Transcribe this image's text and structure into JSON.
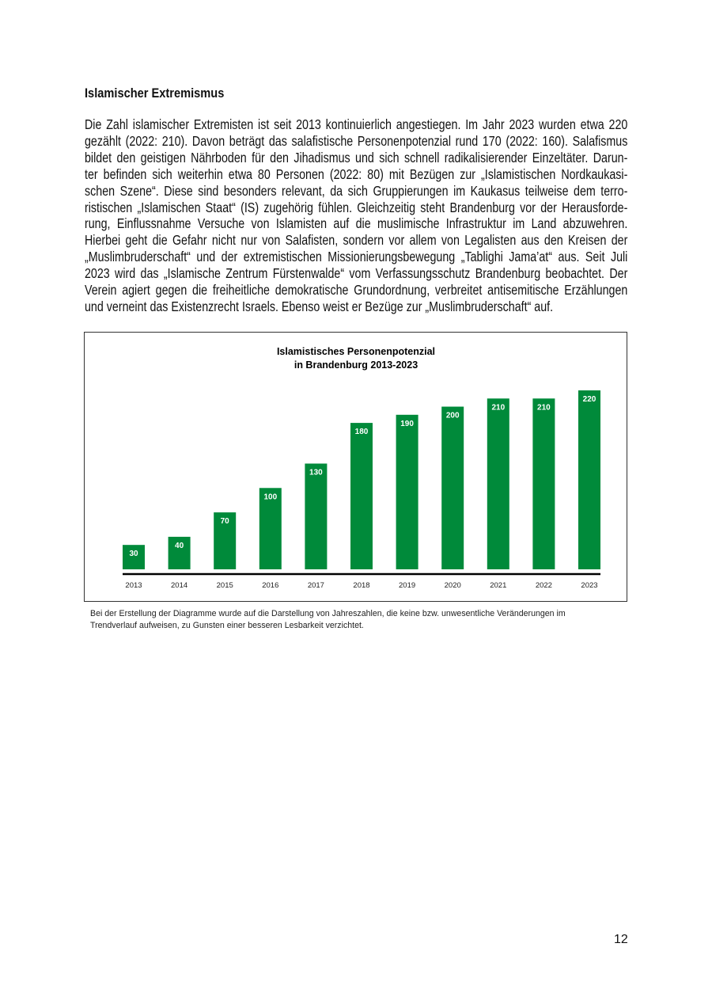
{
  "heading": "Islamischer Extremismus",
  "paragraph_lines": [
    "Die Zahl islamischer Extremisten ist seit 2013 kontinuierlich angestiegen. Im Jahr 2023 wurden etwa 220",
    "gezählt (2022: 210). Davon beträgt das salafistische Personenpotenzial rund 170 (2022: 160). Salafismus",
    "bildet den geistigen Nährboden für den Jihadismus und sich schnell radikalisierender Einzeltäter. Darun-",
    "ter befinden sich weiterhin etwa 80 Personen (2022: 80) mit Bezügen zur „Islamistischen Nordkaukasi-",
    "schen Szene“. Diese sind besonders relevant, da sich Gruppierungen im Kaukasus teilweise dem terro-",
    "ristischen „Islamischen Staat“ (IS) zugehörig fühlen. Gleichzeitig steht Brandenburg vor der Herausforde-",
    "rung, Einflussnahme Versuche von Islamisten auf die muslimische Infrastruktur im Land abzuwehren.",
    "Hierbei geht die Gefahr nicht nur von Salafisten, sondern vor allem von Legalisten aus den Kreisen der",
    "„Muslimbruderschaft“ und der extremistischen Missionierungsbewegung „Tablighi Jama’at“ aus. Seit Juli",
    "2023 wird das „Islamische Zentrum Fürstenwalde“ vom Verfassungsschutz Brandenburg beobachtet. Der",
    "Verein agiert gegen die freiheitliche demokratische Grundordnung, verbreitet antisemitische Erzählungen",
    "und verneint das Existenzrecht Israels. Ebenso weist er Bezüge zur „Muslimbruderschaft“ auf."
  ],
  "chart_data": {
    "type": "bar",
    "title": [
      "Islamistisches Personenpotenzial",
      "in Brandenburg 2013-2023"
    ],
    "categories": [
      "2013",
      "2014",
      "2015",
      "2016",
      "2017",
      "2018",
      "2019",
      "2020",
      "2021",
      "2022",
      "2023"
    ],
    "values": [
      30,
      40,
      70,
      100,
      130,
      180,
      190,
      200,
      210,
      210,
      220
    ],
    "data_labels": [
      "30",
      "40",
      "70",
      "100",
      "130",
      "180",
      "190",
      "200",
      "210",
      "210",
      "220"
    ],
    "xlabel": "",
    "ylabel": "",
    "ylim": [
      0,
      230
    ],
    "grid": false,
    "bar_color": "#008a3a",
    "label_color": "#ffffff"
  },
  "footnote_lines": [
    "Bei der Erstellung der Diagramme wurde auf die Darstellung von Jahreszahlen, die keine bzw. unwesentliche Veränderungen im",
    "Trendverlauf aufweisen, zu Gunsten einer besseren Lesbarkeit verzichtet."
  ],
  "page_number": "12"
}
